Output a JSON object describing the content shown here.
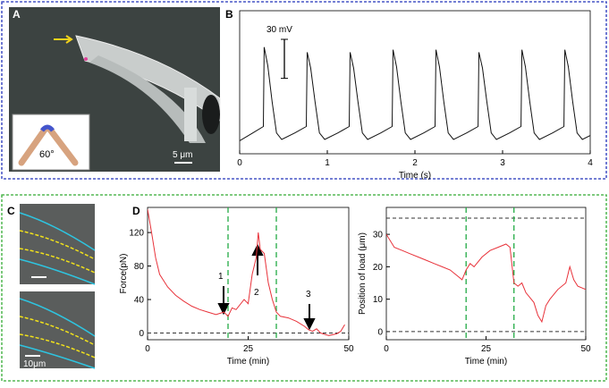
{
  "panel_labels": {
    "a": "A",
    "b": "B",
    "c": "C",
    "d": "D"
  },
  "panel_a": {
    "angle_label": "60°",
    "scale_bar": "5 μm"
  },
  "panel_c": {
    "scale_bar": "10μm"
  },
  "chart_data": [
    {
      "type": "line",
      "xlabel": "Time (s)",
      "xlim": [
        0,
        4
      ],
      "xticks": [
        0,
        1,
        2,
        3,
        4
      ],
      "ylim": [
        0,
        110
      ],
      "scale_bar": {
        "value": 30,
        "label": "30 mV"
      },
      "x": [
        0,
        0.15,
        0.27,
        0.28,
        0.32,
        0.37,
        0.42,
        0.48,
        0.63,
        0.76,
        0.77,
        0.81,
        0.86,
        0.91,
        0.97,
        1.12,
        1.25,
        1.26,
        1.3,
        1.35,
        1.4,
        1.46,
        1.61,
        1.74,
        1.75,
        1.79,
        1.84,
        1.89,
        1.95,
        2.1,
        2.23,
        2.24,
        2.28,
        2.33,
        2.38,
        2.44,
        2.59,
        2.72,
        2.73,
        2.77,
        2.82,
        2.87,
        2.93,
        3.08,
        3.21,
        3.22,
        3.26,
        3.31,
        3.36,
        3.42,
        3.57,
        3.7,
        3.71,
        3.75,
        3.8,
        3.85,
        3.91,
        4.0
      ],
      "series": [
        {
          "color": "#111111",
          "values": [
            10,
            16,
            21,
            82,
            68,
            40,
            16,
            11,
            16,
            21,
            78,
            66,
            40,
            16,
            11,
            16,
            21,
            78,
            66,
            40,
            16,
            11,
            16,
            21,
            80,
            67,
            40,
            16,
            11,
            16,
            21,
            80,
            67,
            40,
            16,
            11,
            16,
            21,
            78,
            66,
            40,
            16,
            11,
            16,
            21,
            80,
            67,
            40,
            16,
            11,
            16,
            21,
            80,
            67,
            40,
            16,
            11,
            14
          ]
        }
      ]
    },
    {
      "type": "line",
      "xlabel": "Time (min)",
      "ylabel": "Force(pN)",
      "xlim": [
        0,
        50
      ],
      "xticks": [
        0,
        25,
        50
      ],
      "ylim": [
        -8,
        150
      ],
      "yticks": [
        0,
        40,
        80,
        120
      ],
      "hlines": [
        0
      ],
      "vlines": [
        20,
        32
      ],
      "annotations": [
        "1",
        "2",
        "3"
      ],
      "x": [
        0,
        1,
        2,
        3,
        5,
        7,
        9,
        11,
        13,
        15,
        17,
        19,
        20,
        21,
        22,
        24,
        25,
        26,
        27,
        27.5,
        28,
        29,
        30,
        31,
        32,
        33,
        35,
        37,
        39,
        40,
        41,
        42,
        43,
        45,
        47,
        48,
        49
      ],
      "series": [
        {
          "color": "#e8323a",
          "values": [
            148,
            120,
            90,
            70,
            55,
            45,
            38,
            32,
            28,
            25,
            22,
            25,
            20,
            30,
            28,
            40,
            35,
            70,
            90,
            120,
            100,
            95,
            60,
            40,
            25,
            20,
            18,
            14,
            8,
            4,
            2,
            5,
            0,
            -3,
            -1,
            2,
            10
          ]
        }
      ]
    },
    {
      "type": "line",
      "xlabel": "Time (min)",
      "ylabel": "Position of load (μm)",
      "xlim": [
        0,
        50
      ],
      "xticks": [
        0,
        25,
        50
      ],
      "ylim": [
        -2.5,
        38.3
      ],
      "yticks": [
        0,
        10,
        20,
        30
      ],
      "hlines": [
        0,
        35
      ],
      "vlines": [
        20,
        32
      ],
      "x": [
        0,
        2,
        4,
        6,
        8,
        10,
        12,
        14,
        16,
        18,
        19,
        20,
        21,
        22,
        24,
        26,
        28,
        30,
        31,
        32,
        33,
        34,
        35,
        37,
        38,
        39,
        40,
        41,
        43,
        45,
        46,
        47,
        48,
        50
      ],
      "series": [
        {
          "color": "#e8323a",
          "values": [
            30,
            26,
            25,
            24,
            23,
            22,
            21,
            20,
            19,
            17,
            16,
            19,
            21,
            20,
            23,
            25,
            26,
            27,
            26,
            15,
            14,
            15,
            12,
            9,
            5,
            3,
            8,
            10,
            13,
            15,
            20,
            16,
            14,
            13
          ]
        }
      ]
    }
  ]
}
